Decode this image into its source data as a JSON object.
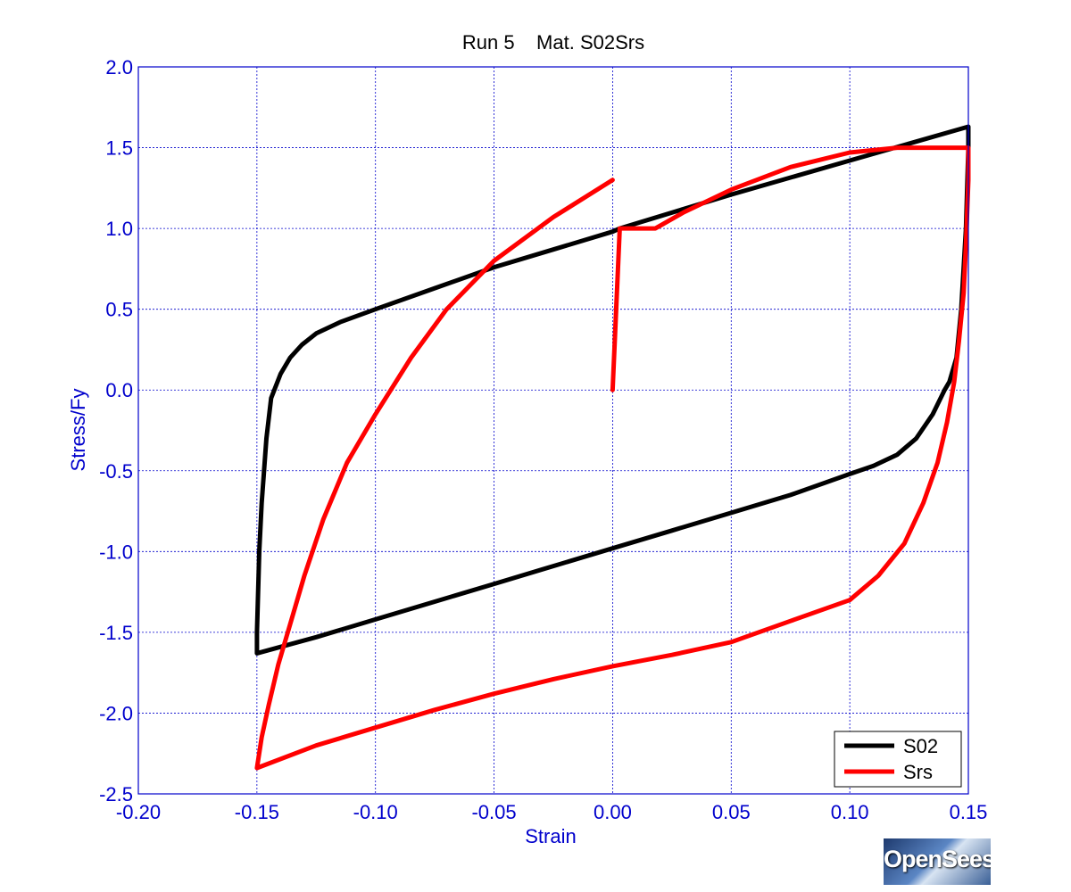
{
  "chart_data": {
    "type": "line",
    "title": "Run 5    Mat. S02Srs",
    "xlabel": "Strain",
    "ylabel": "Stress/Fy",
    "xlim": [
      -0.2,
      0.15
    ],
    "ylim": [
      -2.5,
      2.0
    ],
    "xticks": [
      -0.2,
      -0.15,
      -0.1,
      -0.05,
      0.0,
      0.05,
      0.1,
      0.15
    ],
    "yticks": [
      -2.5,
      -2.0,
      -1.5,
      -1.0,
      -0.5,
      0.0,
      0.5,
      1.0,
      1.5,
      2.0
    ],
    "xtick_labels": [
      "-0.20",
      "-0.15",
      "-0.10",
      "-0.05",
      "0.00",
      "0.05",
      "0.10",
      "0.15"
    ],
    "ytick_labels": [
      "-2.5",
      "-2.0",
      "-1.5",
      "-1.0",
      "-0.5",
      "0.0",
      "0.5",
      "1.0",
      "1.5",
      "2.0"
    ],
    "grid": true,
    "legend_position": "bottom-right",
    "series": [
      {
        "name": "S02",
        "color": "#000000",
        "x": [
          0.0,
          0.003,
          0.05,
          0.1,
          0.15,
          0.15,
          0.149,
          0.147,
          0.145,
          0.142,
          0.14,
          0.135,
          0.128,
          0.12,
          0.11,
          0.1,
          0.075,
          0.05,
          0.025,
          0.0,
          -0.025,
          -0.05,
          -0.075,
          -0.1,
          -0.125,
          -0.14,
          -0.15,
          -0.15,
          -0.149,
          -0.148,
          -0.146,
          -0.144,
          -0.14,
          -0.136,
          -0.131,
          -0.125,
          -0.115,
          -0.1,
          -0.075,
          -0.05,
          -0.025,
          0.0
        ],
        "y": [
          0.98,
          1.0,
          1.21,
          1.42,
          1.63,
          1.5,
          1.0,
          0.5,
          0.2,
          0.05,
          0.0,
          -0.15,
          -0.3,
          -0.4,
          -0.47,
          -0.52,
          -0.65,
          -0.76,
          -0.87,
          -0.98,
          -1.09,
          -1.2,
          -1.31,
          -1.42,
          -1.53,
          -1.59,
          -1.63,
          -1.5,
          -1.0,
          -0.7,
          -0.3,
          -0.05,
          0.1,
          0.2,
          0.28,
          0.35,
          0.42,
          0.5,
          0.63,
          0.76,
          0.87,
          0.98
        ]
      },
      {
        "name": "Srs",
        "color": "#ff0000",
        "x": [
          0.0,
          0.003,
          0.018,
          0.03,
          0.05,
          0.075,
          0.1,
          0.12,
          0.15,
          0.15,
          0.149,
          0.148,
          0.146,
          0.144,
          0.141,
          0.137,
          0.131,
          0.123,
          0.112,
          0.1,
          0.075,
          0.05,
          0.025,
          0.0,
          -0.025,
          -0.05,
          -0.075,
          -0.1,
          -0.125,
          -0.15,
          -0.148,
          -0.145,
          -0.141,
          -0.136,
          -0.13,
          -0.122,
          -0.112,
          -0.1,
          -0.085,
          -0.07,
          -0.05,
          -0.025,
          0.0
        ],
        "y": [
          0.0,
          1.0,
          1.0,
          1.1,
          1.24,
          1.38,
          1.47,
          1.5,
          1.5,
          1.3,
          0.9,
          0.6,
          0.3,
          0.05,
          -0.2,
          -0.45,
          -0.7,
          -0.95,
          -1.15,
          -1.3,
          -1.43,
          -1.56,
          -1.64,
          -1.71,
          -1.79,
          -1.88,
          -1.98,
          -2.09,
          -2.2,
          -2.34,
          -2.15,
          -1.95,
          -1.7,
          -1.45,
          -1.15,
          -0.8,
          -0.45,
          -0.15,
          0.2,
          0.5,
          0.8,
          1.07,
          1.3
        ]
      }
    ]
  },
  "logo_text": "OpenSees"
}
